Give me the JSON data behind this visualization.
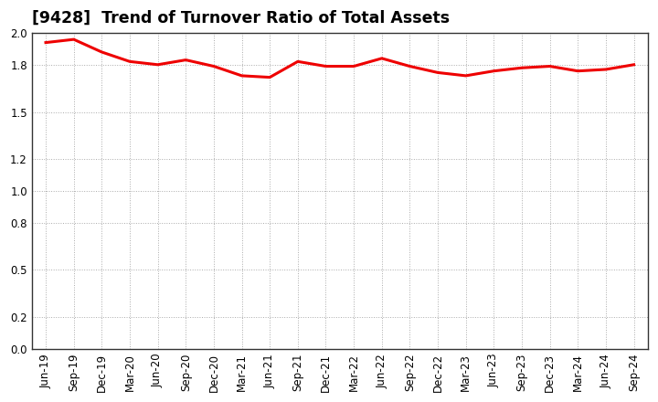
{
  "title": "[9428]  Trend of Turnover Ratio of Total Assets",
  "x_labels": [
    "Jun-19",
    "Sep-19",
    "Dec-19",
    "Mar-20",
    "Jun-20",
    "Sep-20",
    "Dec-20",
    "Mar-21",
    "Jun-21",
    "Sep-21",
    "Dec-21",
    "Mar-22",
    "Jun-22",
    "Sep-22",
    "Dec-22",
    "Mar-23",
    "Jun-23",
    "Sep-23",
    "Dec-23",
    "Mar-24",
    "Jun-24",
    "Sep-24"
  ],
  "y_values": [
    1.94,
    1.96,
    1.88,
    1.82,
    1.8,
    1.83,
    1.79,
    1.73,
    1.72,
    1.82,
    1.79,
    1.79,
    1.84,
    1.79,
    1.75,
    1.73,
    1.76,
    1.78,
    1.79,
    1.76,
    1.77,
    1.8
  ],
  "ylim_min": 0.0,
  "ylim_max": 2.0,
  "yticks": [
    0.0,
    0.2,
    0.5,
    0.8,
    1.0,
    1.2,
    1.5,
    1.8,
    2.0
  ],
  "line_color": "#EE0000",
  "line_width": 2.2,
  "bg_color": "#FFFFFF",
  "plot_bg_color": "#FFFFFF",
  "grid_color": "#AAAAAA",
  "grid_linestyle": ":",
  "grid_linewidth": 0.7,
  "title_fontsize": 12.5,
  "tick_fontsize": 8.5,
  "spine_color": "#333333"
}
